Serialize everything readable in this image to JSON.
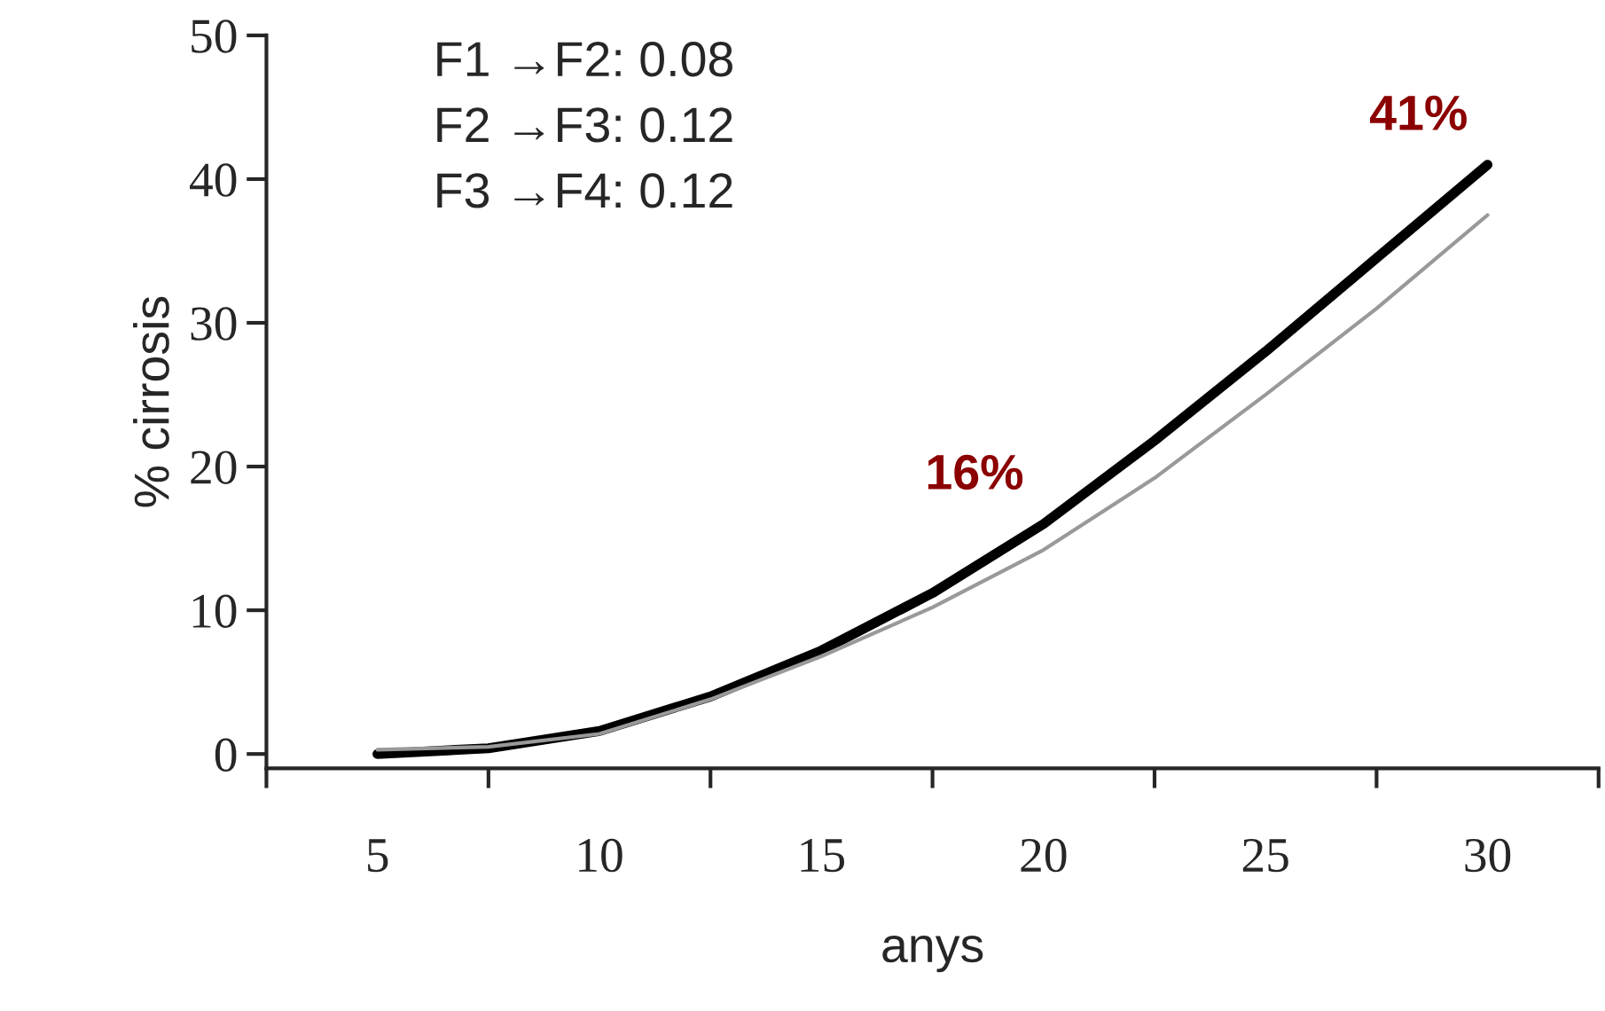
{
  "chart_data": {
    "type": "line",
    "xlabel": "anys",
    "ylabel": "% cirrosis",
    "x": [
      5,
      7.5,
      10,
      12.5,
      15,
      17.5,
      20,
      22.5,
      25,
      27.5,
      30
    ],
    "series": [
      {
        "color": "#000000",
        "values": [
          0,
          0.4,
          1.6,
          4,
          7.2,
          11.2,
          16,
          21.8,
          28,
          34.5,
          41
        ]
      },
      {
        "color": "#999999",
        "values": [
          0.3,
          0.5,
          1.4,
          3.8,
          6.8,
          10.2,
          14.2,
          19.2,
          25,
          31,
          37.5
        ]
      }
    ],
    "xlim": [
      2.5,
      32.5
    ],
    "ylim": [
      -1,
      50
    ],
    "xticks": [
      {
        "value": 2.5,
        "label": null
      },
      {
        "value": 5,
        "label": "5"
      },
      {
        "value": 7.5,
        "label": null
      },
      {
        "value": 10,
        "label": "10"
      },
      {
        "value": 12.5,
        "label": null
      },
      {
        "value": 15,
        "label": "15"
      },
      {
        "value": 17.5,
        "label": null
      },
      {
        "value": 20,
        "label": "20"
      },
      {
        "value": 22.5,
        "label": null
      },
      {
        "value": 25,
        "label": "25"
      },
      {
        "value": 27.5,
        "label": null
      },
      {
        "value": 30,
        "label": "30"
      },
      {
        "value": 32.5,
        "label": null
      }
    ],
    "yticks": [
      0,
      10,
      20,
      30,
      40,
      50
    ],
    "annotations": [
      "F1 →F2: 0.08",
      "F2 →F3: 0.12",
      "F3 →F4: 0.12",
      {
        "text": "16%",
        "x": 20,
        "y": 16
      },
      {
        "text": "41%",
        "x": 30,
        "y": 41
      }
    ],
    "grid": false,
    "legend": false,
    "marker": "none",
    "line_style": "solid"
  }
}
